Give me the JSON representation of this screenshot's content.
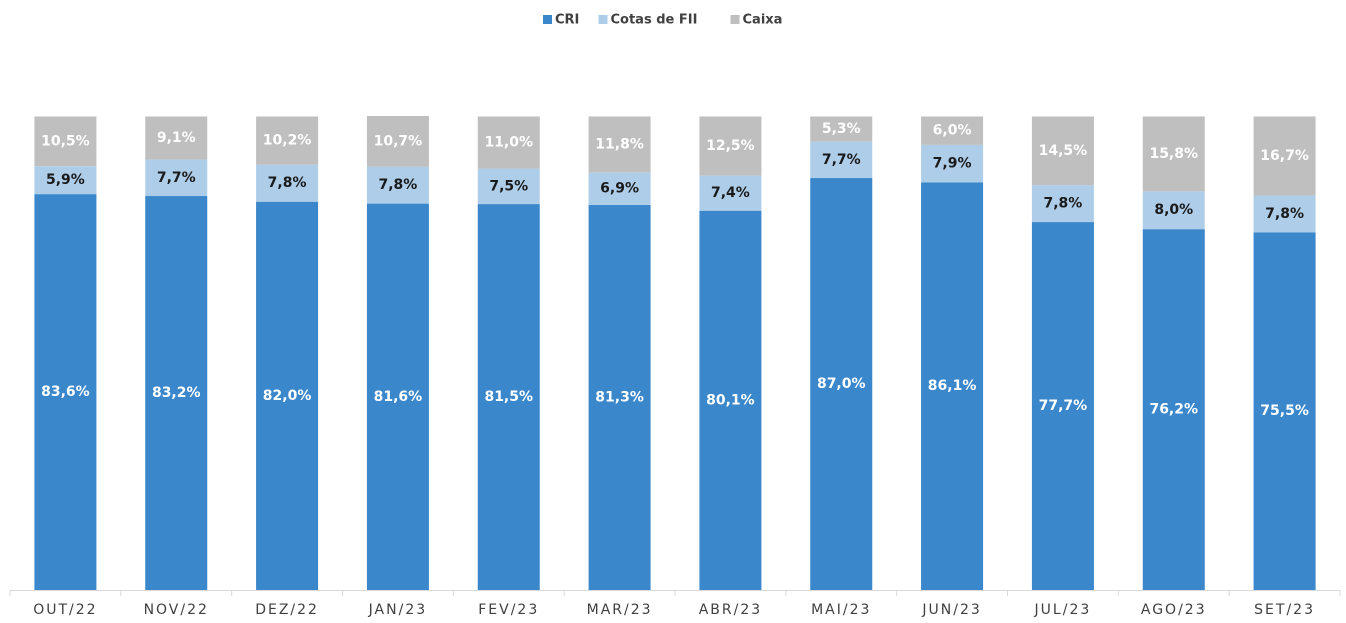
{
  "chart_data": {
    "type": "bar",
    "stacked": true,
    "categories": [
      "OUT/22",
      "NOV/22",
      "DEZ/22",
      "JAN/23",
      "FEV/23",
      "MAR/23",
      "ABR/23",
      "MAI/23",
      "JUN/23",
      "JUL/23",
      "AGO/23",
      "SET/23"
    ],
    "series": [
      {
        "name": "CRI",
        "color": "#3a87cc",
        "label_color": "#ffffff",
        "values": [
          83.6,
          83.2,
          82.0,
          81.6,
          81.5,
          81.3,
          80.1,
          87.0,
          86.1,
          77.7,
          76.2,
          75.5
        ],
        "value_labels": [
          "83,6%",
          "83,2%",
          "82,0%",
          "81,6%",
          "81,5%",
          "81,3%",
          "80,1%",
          "87,0%",
          "86,1%",
          "77,7%",
          "76,2%",
          "75,5%"
        ]
      },
      {
        "name": "Cotas de FII",
        "color": "#aecde9",
        "label_color": "#1a1a1a",
        "values": [
          5.9,
          7.7,
          7.8,
          7.8,
          7.5,
          6.9,
          7.4,
          7.7,
          7.9,
          7.8,
          8.0,
          7.8
        ],
        "value_labels": [
          "5,9%",
          "7,7%",
          "7,8%",
          "7,8%",
          "7,5%",
          "6,9%",
          "7,4%",
          "7,7%",
          "7,9%",
          "7,8%",
          "8,0%",
          "7,8%"
        ]
      },
      {
        "name": "Caixa",
        "color": "#bfbfbf",
        "label_color": "#ffffff",
        "values": [
          10.5,
          9.1,
          10.2,
          10.7,
          11.0,
          11.8,
          12.5,
          5.3,
          6.0,
          14.5,
          15.8,
          16.7
        ],
        "value_labels": [
          "10,5%",
          "9,1%",
          "10,2%",
          "10,7%",
          "11,0%",
          "11,8%",
          "12,5%",
          "5,3%",
          "6,0%",
          "14,5%",
          "15,8%",
          "16,7%"
        ]
      }
    ],
    "legend": "top"
  }
}
